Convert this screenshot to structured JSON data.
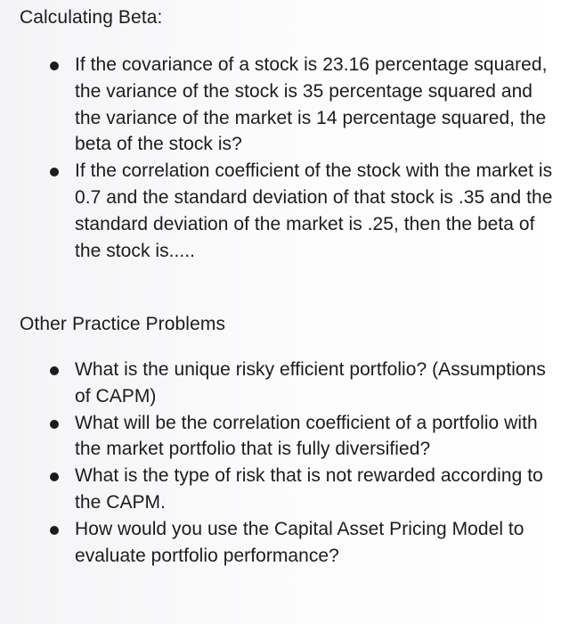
{
  "section1": {
    "heading": "Calculating Beta:",
    "items": [
      {
        "text": "If the covariance of a stock is 23.16 percentage squared, the variance of the stock is 35 percentage squared and the variance of the market is 14 percentage squared, the beta of the stock is?"
      },
      {
        "text": "If the correlation coefficient of the stock with the market is 0.7 and the standard deviation of that stock is .35 and the standard deviation of the market is .25, then the beta of the stock is....."
      }
    ]
  },
  "section2": {
    "heading": "Other Practice Problems",
    "items": [
      {
        "text": "What is the unique risky efficient portfolio? (Assumptions of CAPM)"
      },
      {
        "text": "What will be the correlation coefficient of a portfolio with the market portfolio that is fully diversified?"
      },
      {
        "text": "What is the type of risk that is not rewarded according to the CAPM."
      },
      {
        "text": "How would you use the Capital Asset Pricing Model to evaluate portfolio performance?"
      }
    ]
  }
}
